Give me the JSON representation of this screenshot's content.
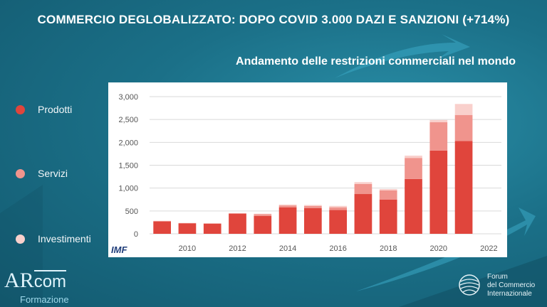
{
  "slide": {
    "title": "COMMERCIO DEGLOBALIZZATO: DOPO COVID 3.000 DAZI E SANZIONI (+714%)",
    "subtitle": "Andamento delle restrizioni commerciali nel mondo"
  },
  "legend": [
    {
      "label": "Prodotti",
      "color": "#e0453c"
    },
    {
      "label": "Servizi",
      "color": "#f0948d"
    },
    {
      "label": "Investimenti",
      "color": "#f9d0cc"
    }
  ],
  "source": "IMF",
  "branding": {
    "ar": "AR",
    "com": "com",
    "sub": "Formazione",
    "forum_lines": [
      "Forum",
      "del Commercio",
      "Internazionale"
    ]
  },
  "chart_data": {
    "type": "bar",
    "stacked": true,
    "categories": [
      "2009",
      "2010",
      "2011",
      "2012",
      "2013",
      "2014",
      "2015",
      "2016",
      "2017",
      "2018",
      "2019",
      "2020",
      "2021",
      "2022"
    ],
    "x_tick_labels": [
      "2010",
      "2012",
      "2014",
      "2016",
      "2018",
      "2020",
      "2022"
    ],
    "series": [
      {
        "name": "Prodotti",
        "color": "#e0453c",
        "values": [
          270,
          230,
          220,
          440,
          390,
          580,
          560,
          520,
          870,
          750,
          1200,
          1820,
          2030,
          null
        ]
      },
      {
        "name": "Servizi",
        "color": "#f0948d",
        "values": [
          10,
          5,
          10,
          10,
          40,
          40,
          50,
          60,
          220,
          200,
          460,
          620,
          570,
          null
        ]
      },
      {
        "name": "Investimenti",
        "color": "#f9d0cc",
        "values": [
          5,
          5,
          5,
          5,
          10,
          20,
          20,
          30,
          40,
          30,
          50,
          50,
          240,
          null
        ]
      }
    ],
    "ylim": [
      0,
      3000
    ],
    "yticks": [
      0,
      500,
      1000,
      1500,
      2000,
      2500,
      3000
    ],
    "ytick_labels": [
      "0",
      "500",
      "1,000",
      "1,500",
      "2,000",
      "2,500",
      "3,000"
    ],
    "grid": true
  }
}
